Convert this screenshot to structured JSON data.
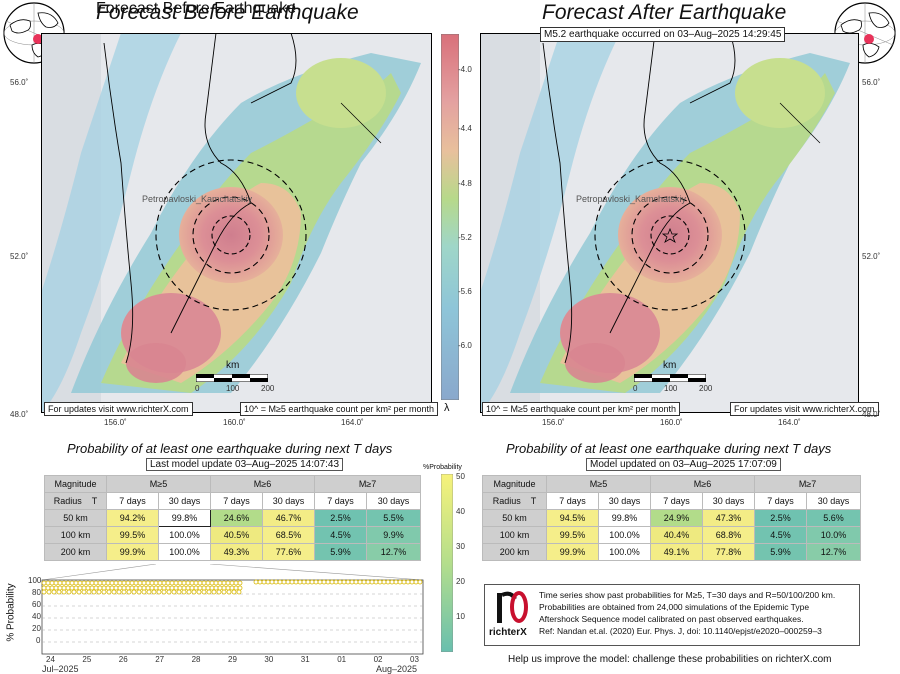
{
  "left_map": {
    "title": "Forecast Before Earthquake",
    "city": "Petropavloski_Kamchatskiy",
    "footer_link": "For updates visit www.richterX.com",
    "footer_units": "10^ = M≥5 earthquake count per km² per month",
    "lon_ticks": [
      "156.0˚",
      "160.0˚",
      "164.0˚"
    ],
    "lat_ticks": [
      "56.0˚",
      "52.0˚",
      "48.0˚"
    ],
    "scale_title": "km",
    "scale_ticks": [
      "0",
      "100",
      "200"
    ]
  },
  "right_map": {
    "title": "Forecast After Earthquake",
    "event": "M5.2 earthquake occurred on 03–Aug–2025 14:29:45",
    "city": "Petropavloski_Kamchatskiy",
    "footer_link": "For updates visit www.richterX.com",
    "footer_units": "10^ = M≥5 earthquake count per km² per month",
    "lon_ticks": [
      "156.0˚",
      "160.0˚",
      "164.0˚"
    ],
    "lat_ticks": [
      "56.0˚",
      "52.0˚",
      "48.0˚"
    ],
    "scale_title": "km",
    "scale_ticks": [
      "0",
      "100",
      "200"
    ]
  },
  "colorbar": {
    "ticks": [
      "-4.0",
      "-4.4",
      "-4.8",
      "-5.2",
      "-5.6",
      "-6.0"
    ],
    "label": "λ"
  },
  "left_table": {
    "title": "Probability of at least one earthquake during next T days",
    "update": "Last model update 03–Aug–2025 14:07:43",
    "headers": {
      "magnitude": "Magnitude",
      "radius": "Radius",
      "t": "T",
      "m5": "M≥5",
      "m6": "M≥6",
      "m7": "M≥7",
      "d7": "7 days",
      "d30": "30 days"
    },
    "rows": [
      {
        "radius": "50 km",
        "vals": [
          "94.2%",
          "99.8%",
          "24.6%",
          "46.7%",
          "2.5%",
          "5.5%"
        ]
      },
      {
        "radius": "100 km",
        "vals": [
          "99.5%",
          "100.0%",
          "40.5%",
          "68.5%",
          "4.5%",
          "9.9%"
        ]
      },
      {
        "radius": "200 km",
        "vals": [
          "99.9%",
          "100.0%",
          "49.3%",
          "77.6%",
          "5.9%",
          "12.7%"
        ]
      }
    ]
  },
  "right_table": {
    "title": "Probability of at least one earthquake during next T days",
    "update": "Model updated on 03–Aug–2025 17:07:09",
    "headers": {
      "magnitude": "Magnitude",
      "radius": "Radius",
      "t": "T",
      "m5": "M≥5",
      "m6": "M≥6",
      "m7": "M≥7",
      "d7": "7 days",
      "d30": "30 days"
    },
    "rows": [
      {
        "radius": "50 km",
        "vals": [
          "94.5%",
          "99.8%",
          "24.9%",
          "47.3%",
          "2.5%",
          "5.6%"
        ]
      },
      {
        "radius": "100 km",
        "vals": [
          "99.5%",
          "100.0%",
          "40.4%",
          "68.8%",
          "4.5%",
          "10.0%"
        ]
      },
      {
        "radius": "200 km",
        "vals": [
          "99.9%",
          "100.0%",
          "49.1%",
          "77.8%",
          "5.9%",
          "12.7%"
        ]
      }
    ]
  },
  "prob_colorbar": {
    "label": "%Probability",
    "ticks": [
      "50",
      "40",
      "30",
      "20",
      "10"
    ]
  },
  "timeseries": {
    "ylabel": "% Probability",
    "yticks": [
      "100",
      "80",
      "60",
      "40",
      "20",
      "0"
    ],
    "xticks": [
      "24",
      "25",
      "26",
      "27",
      "28",
      "29",
      "30",
      "31",
      "01",
      "02",
      "03"
    ],
    "month_left": "Jul–2025",
    "month_right": "Aug–2025"
  },
  "info": {
    "logo_text": "richterX",
    "lines": [
      "Time series show past probabilities for M≥5, T=30 days and R=50/100/200 km.",
      "Probabilities are obtained from 24,000 simulations of the Epidemic Type",
      "Aftershock Sequence model calibrated on past observed earthquakes.",
      "Ref: Nandan et.al. (2020) Eur. Phys. J, doi: 10.1140/epjst/e2020–000259–3"
    ]
  },
  "footer": "Help us improve the model: challenge these probabilities on richterX.com",
  "colors": {
    "yellow": "#f5f07a",
    "green": "#a9dc8a",
    "teal": "#6fc2b0",
    "table_header": "#cfcfcf",
    "hazard_high": "#d9707a"
  }
}
